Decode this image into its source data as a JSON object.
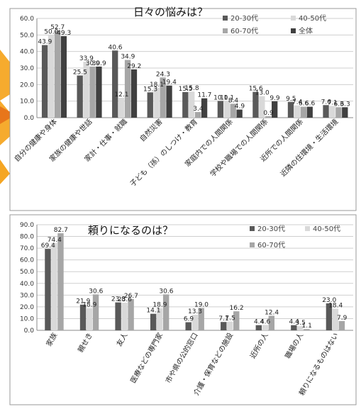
{
  "chart_data": [
    {
      "type": "bar",
      "title": "日々の悩みは？",
      "ylim": [
        0,
        60
      ],
      "yticks": [
        "0.0",
        "10.0",
        "20.0",
        "30.0",
        "40.0",
        "50.0",
        "60.0"
      ],
      "grid": true,
      "legend_position": "top-right",
      "categories": [
        "自分の健康や身体",
        "家族の健康や世話",
        "家計・仕事・就職",
        "自然災害",
        "子ども（孫）のしつけ・教育",
        "家庭内での人間関係",
        "学校や職場での人間関係",
        "近所での人間関係",
        "近隣の住環境・生活環境"
      ],
      "series": [
        {
          "name": "20-30代",
          "color": "#595959",
          "values": [
            43.9,
            25.5,
            40.6,
            15.3,
            15.5,
            10.1,
            15.6,
            9.5,
            7.6
          ]
        },
        {
          "name": "40-50代",
          "color": "#d9d9d9",
          "values": [
            50.0,
            33.9,
            12.1,
            18.1,
            15.8,
            10.1,
            13.0,
            7.4,
            7.1
          ]
        },
        {
          "name": "60-70代",
          "color": "#a6a6a6",
          "values": [
            52.7,
            30.9,
            34.9,
            24.3,
            3.4,
            8.4,
            0.9,
            6.6,
            6.3
          ]
        },
        {
          "name": "全体",
          "color": "#404040",
          "values": [
            49.3,
            30.9,
            29.2,
            19.4,
            11.7,
            4.9,
            9.9,
            6.6,
            6.3
          ]
        }
      ],
      "data_labels": [
        [
          "43.9",
          "50.0",
          "52.7",
          "49.3"
        ],
        [
          "25.5",
          "33.9",
          "30.9",
          "30.9"
        ],
        [
          "40.6",
          "12.1",
          "34.9",
          "29.2"
        ],
        [
          "15.3",
          "18.1",
          "24.3",
          "19.4"
        ],
        [
          "15.5",
          "15.8",
          "3.4",
          "11.7"
        ],
        [
          "10.1",
          "10.1",
          "8.4",
          "4.9"
        ],
        [
          "15.6",
          "13.0",
          "0.9",
          "9.9"
        ],
        [
          "9.5",
          "7.4",
          "6.6",
          "6.6"
        ],
        [
          "7.6",
          "7.1",
          "6.3",
          "6.3"
        ]
      ]
    },
    {
      "type": "bar",
      "title": "頼りになるのは？",
      "ylim": [
        0,
        90
      ],
      "yticks": [
        "0.0",
        "10.0",
        "20.0",
        "30.0",
        "40.0",
        "50.0",
        "60.0",
        "70.0",
        "80.0",
        "90.0"
      ],
      "grid": true,
      "legend_position": "top-right",
      "categories": [
        "家族",
        "親せき",
        "友人",
        "医療などの専門家",
        "市や県の公的窓口",
        "介護・保育などの施設",
        "近所の人",
        "職場の人",
        "頼りになるものはない"
      ],
      "series": [
        {
          "name": "20-30代",
          "color": "#595959",
          "values": [
            69.4,
            21.9,
            23.8,
            14.1,
            6.9,
            7.1,
            4.4,
            4.4,
            23.0
          ]
        },
        {
          "name": "40-50代",
          "color": "#d9d9d9",
          "values": [
            74.4,
            18.9,
            23.6,
            18.9,
            13.3,
            7.5,
            4.6,
            3.5,
            18.4
          ]
        },
        {
          "name": "60-70代",
          "color": "#a6a6a6",
          "values": [
            82.7,
            30.6,
            26.7,
            30.6,
            19.0,
            16.2,
            12.4,
            1.1,
            7.9
          ]
        }
      ],
      "data_labels": [
        [
          "69.4",
          "74.4",
          "82.7"
        ],
        [
          "21.9",
          "18.9",
          "30.6"
        ],
        [
          "23.8",
          "23.6",
          "26.7"
        ],
        [
          "14.1",
          "18.9",
          "30.6"
        ],
        [
          "6.9",
          "13.3",
          "19.0"
        ],
        [
          "7.1",
          "7.5",
          "16.2"
        ],
        [
          "4.4",
          "4.6",
          "12.4"
        ],
        [
          "4.4",
          "3.5",
          "1.1"
        ],
        [
          "23.0",
          "18.4",
          "7.9"
        ]
      ]
    }
  ]
}
